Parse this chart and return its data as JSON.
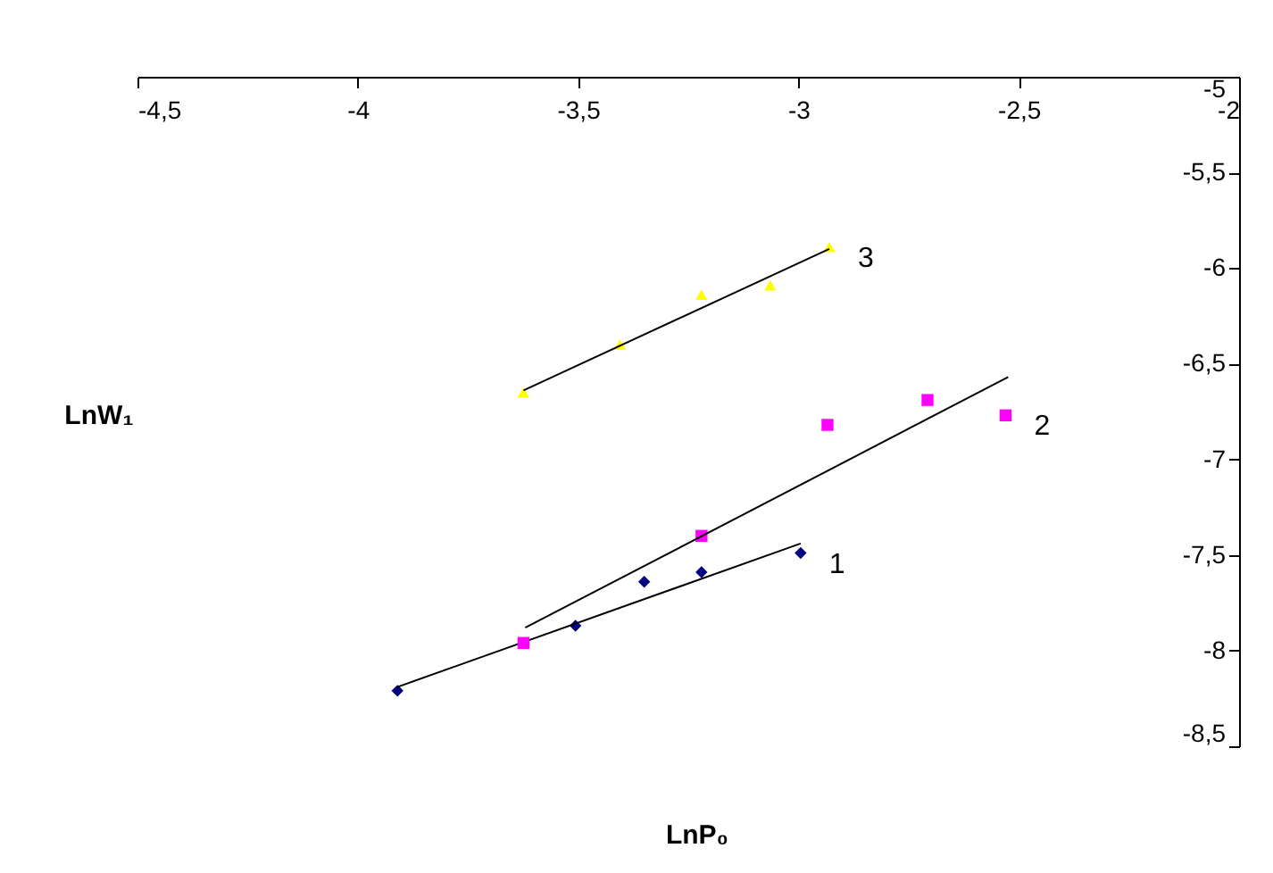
{
  "chart_data": {
    "type": "scatter",
    "xlabel": "LnP₀",
    "ylabel": "LnW₁",
    "xlim": [
      -4.5,
      -2
    ],
    "xticks": [
      {
        "value": -4.5,
        "label": "-4,5"
      },
      -4,
      {
        "value": -3.5,
        "label": "-3,5"
      },
      -3,
      {
        "value": -2.5,
        "label": "-2,5"
      },
      -2
    ],
    "ylim": [
      -8.5,
      -5
    ],
    "yticks": [
      {
        "value": -8.5,
        "label": "-8,5"
      },
      -8,
      {
        "value": -7.5,
        "label": "-7,5"
      },
      -7,
      {
        "value": -6.5,
        "label": "-6,5"
      },
      -6,
      {
        "value": -5.5,
        "label": "-5,5"
      },
      -5
    ],
    "grid": false,
    "series": [
      {
        "name": "1",
        "color": "#000080",
        "marker": "diamond",
        "x": [
          -3.91,
          -3.506,
          -3.35,
          -3.22,
          -2.995
        ],
        "values": [
          -8.21,
          -7.87,
          -7.64,
          -7.59,
          -7.49
        ]
      },
      {
        "type": "line",
        "color": "#000000",
        "marker": "none",
        "x": [
          -3.91,
          -2.995
        ],
        "values": [
          -8.19,
          -7.44
        ]
      },
      {
        "name": "2",
        "color": "#ff00ff",
        "marker": "square",
        "x": [
          -3.624,
          -3.22,
          -2.934,
          -2.707,
          -2.53
        ],
        "values": [
          -7.96,
          -7.4,
          -6.82,
          -6.69,
          -6.77
        ]
      },
      {
        "type": "line",
        "color": "#000000",
        "marker": "none",
        "x": [
          -3.62,
          -2.524
        ],
        "values": [
          -7.88,
          -6.57
        ]
      },
      {
        "name": "3",
        "color": "#ffff00",
        "marker": "triangle",
        "x": [
          -3.624,
          -3.405,
          -3.22,
          -3.064,
          -2.93
        ],
        "values": [
          -6.65,
          -6.4,
          -6.14,
          -6.09,
          -5.89
        ]
      },
      {
        "type": "line",
        "color": "#000000",
        "marker": "none",
        "x": [
          -3.624,
          -2.93
        ],
        "values": [
          -6.64,
          -5.9
        ]
      }
    ]
  }
}
